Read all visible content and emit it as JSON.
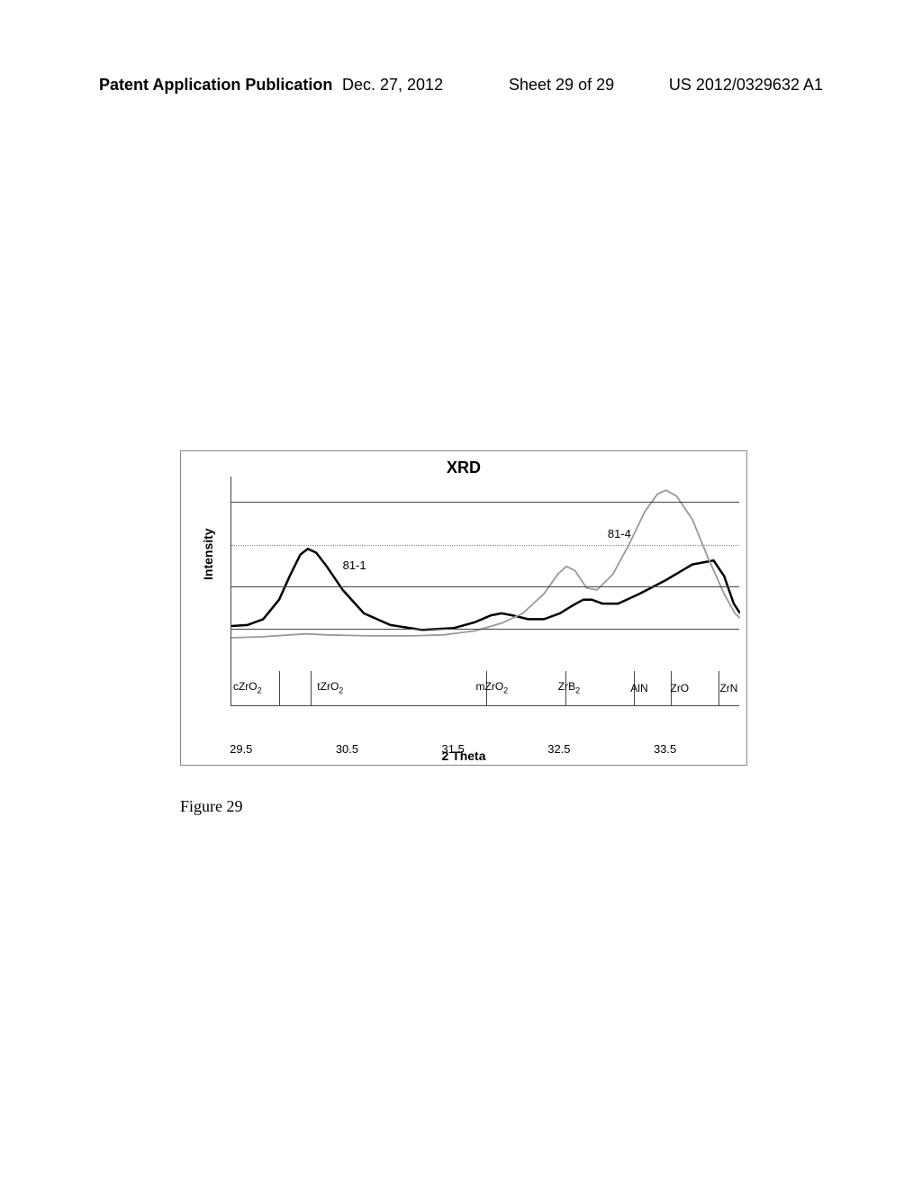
{
  "header": {
    "left": "Patent Application Publication",
    "date": "Dec. 27, 2012",
    "sheet": "Sheet 29 of 29",
    "pubnum": "US 2012/0329632 A1"
  },
  "chart": {
    "title": "XRD",
    "ylabel": "Intensity",
    "xlabel": "2 Theta",
    "xlim": [
      29.4,
      34.2
    ],
    "background_color": "#ffffff",
    "grid_color": "#444444",
    "xticks": [
      {
        "pos": 29.5,
        "label": "29.5"
      },
      {
        "pos": 30.5,
        "label": "30.5"
      },
      {
        "pos": 31.5,
        "label": "31.5"
      },
      {
        "pos": 32.5,
        "label": "32.5"
      },
      {
        "pos": 33.5,
        "label": "33.5"
      }
    ],
    "gridlines_y": [
      0.22,
      0.44,
      0.65,
      0.87
    ],
    "series": [
      {
        "name": "81-1",
        "color": "#000000",
        "stroke_width": 2.5,
        "label_xy": [
          30.45,
          0.58
        ],
        "points": [
          [
            29.4,
            0.235
          ],
          [
            29.55,
            0.24
          ],
          [
            29.7,
            0.27
          ],
          [
            29.85,
            0.37
          ],
          [
            29.95,
            0.49
          ],
          [
            30.05,
            0.6
          ],
          [
            30.12,
            0.63
          ],
          [
            30.2,
            0.61
          ],
          [
            30.3,
            0.54
          ],
          [
            30.45,
            0.42
          ],
          [
            30.65,
            0.3
          ],
          [
            30.9,
            0.24
          ],
          [
            31.2,
            0.215
          ],
          [
            31.5,
            0.225
          ],
          [
            31.7,
            0.255
          ],
          [
            31.85,
            0.29
          ],
          [
            31.95,
            0.3
          ],
          [
            32.05,
            0.29
          ],
          [
            32.2,
            0.27
          ],
          [
            32.35,
            0.27
          ],
          [
            32.5,
            0.3
          ],
          [
            32.62,
            0.34
          ],
          [
            32.72,
            0.37
          ],
          [
            32.8,
            0.37
          ],
          [
            32.9,
            0.35
          ],
          [
            33.05,
            0.35
          ],
          [
            33.25,
            0.4
          ],
          [
            33.5,
            0.47
          ],
          [
            33.75,
            0.55
          ],
          [
            33.95,
            0.57
          ],
          [
            34.05,
            0.49
          ],
          [
            34.14,
            0.35
          ],
          [
            34.2,
            0.3
          ]
        ]
      },
      {
        "name": "81-4",
        "color": "#999999",
        "stroke_width": 1.8,
        "label_xy": [
          32.95,
          0.74
        ],
        "points": [
          [
            29.4,
            0.175
          ],
          [
            29.7,
            0.18
          ],
          [
            29.95,
            0.19
          ],
          [
            30.1,
            0.195
          ],
          [
            30.3,
            0.19
          ],
          [
            30.7,
            0.185
          ],
          [
            31.1,
            0.185
          ],
          [
            31.4,
            0.19
          ],
          [
            31.7,
            0.21
          ],
          [
            31.95,
            0.25
          ],
          [
            32.15,
            0.3
          ],
          [
            32.35,
            0.4
          ],
          [
            32.48,
            0.5
          ],
          [
            32.56,
            0.54
          ],
          [
            32.64,
            0.52
          ],
          [
            32.75,
            0.43
          ],
          [
            32.85,
            0.42
          ],
          [
            33.0,
            0.5
          ],
          [
            33.15,
            0.65
          ],
          [
            33.3,
            0.82
          ],
          [
            33.42,
            0.91
          ],
          [
            33.5,
            0.93
          ],
          [
            33.6,
            0.9
          ],
          [
            33.75,
            0.78
          ],
          [
            33.9,
            0.58
          ],
          [
            34.05,
            0.4
          ],
          [
            34.15,
            0.3
          ],
          [
            34.2,
            0.275
          ]
        ]
      }
    ],
    "phases": [
      {
        "x": 29.85,
        "label": "cZrO",
        "sub": "2",
        "label_offset": -55
      },
      {
        "x": 30.15,
        "label": "tZrO",
        "sub": "2",
        "label_offset": 3
      },
      {
        "x": 31.8,
        "label": "mZrO",
        "sub": "2",
        "label_offset": -15
      },
      {
        "x": 32.55,
        "label": "ZrB",
        "sub": "2",
        "label_offset": -12
      },
      {
        "x": 33.2,
        "label": "AlN",
        "sub": "",
        "label_offset": -8
      },
      {
        "x": 33.55,
        "label": "ZrO",
        "sub": "",
        "label_offset": -5
      },
      {
        "x": 34.0,
        "label": "ZrN",
        "sub": "",
        "label_offset": -3
      }
    ]
  },
  "caption": "Figure 29"
}
